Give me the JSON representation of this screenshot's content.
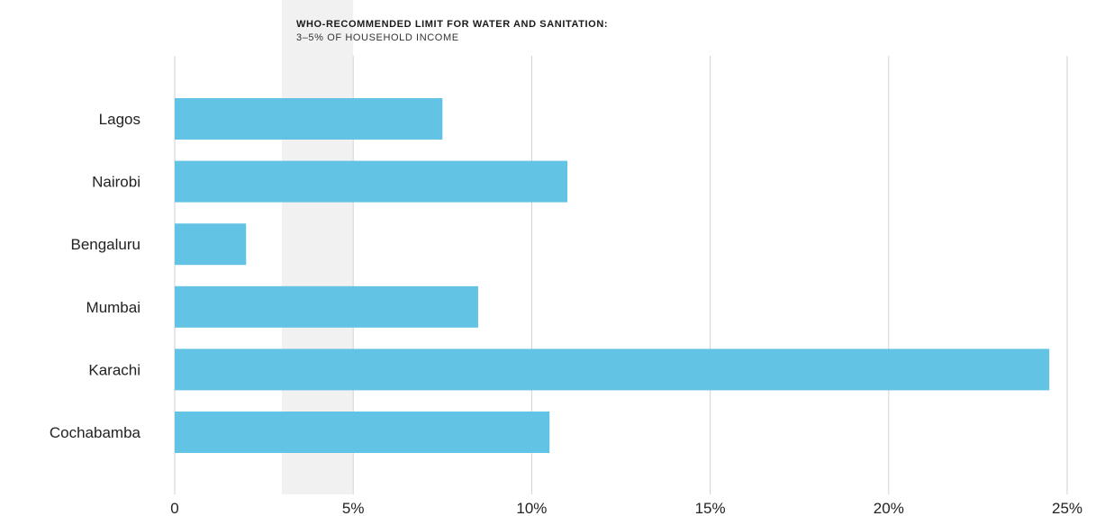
{
  "chart_data": {
    "type": "bar",
    "orientation": "horizontal",
    "categories": [
      "Lagos",
      "Nairobi",
      "Bengaluru",
      "Mumbai",
      "Karachi",
      "Cochabamba"
    ],
    "values": [
      7.5,
      11.0,
      2.0,
      8.5,
      24.5,
      10.5
    ],
    "xlim": [
      0,
      25
    ],
    "xticks": [
      0,
      5,
      10,
      15,
      20,
      25
    ],
    "xtick_labels": [
      "0",
      "5%",
      "10%",
      "15%",
      "20%",
      "25%"
    ],
    "grid": "vertical",
    "bar_color": "#62c3e4",
    "reference_band": {
      "range": [
        3,
        5
      ],
      "color": "#f1f1f1",
      "title": "WHO-RECOMMENDED LIMIT FOR WATER AND SANITATION:",
      "subtitle": "3–5% OF HOUSEHOLD INCOME"
    }
  }
}
